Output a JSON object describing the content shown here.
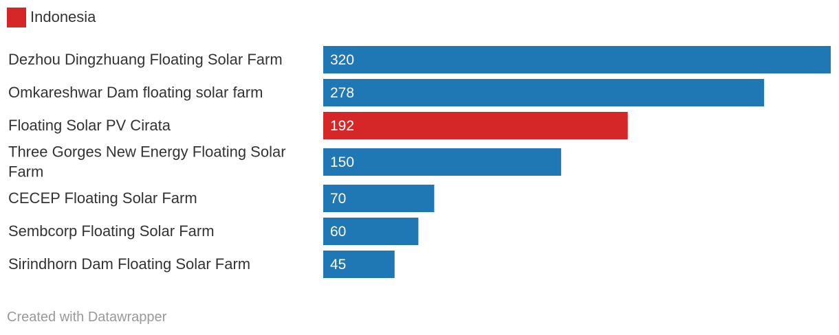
{
  "legend": {
    "label": "Indonesia",
    "color": "#d62728"
  },
  "footer": {
    "credit": "Created with Datawrapper"
  },
  "chart_data": {
    "type": "bar",
    "orientation": "horizontal",
    "categories": [
      "Dezhou Dingzhuang Floating Solar Farm",
      "Omkareshwar Dam floating solar farm",
      "Floating Solar PV Cirata",
      "Three Gorges New Energy Floating Solar Farm",
      "CECEP Floating Solar Farm",
      "Sembcorp Floating Solar Farm",
      "Sirindhorn Dam Floating Solar Farm"
    ],
    "values": [
      320,
      278,
      192,
      150,
      70,
      60,
      45
    ],
    "highlight": [
      false,
      false,
      true,
      false,
      false,
      false,
      false
    ],
    "colors": {
      "default": "#1f77b4",
      "highlight": "#d62728"
    },
    "xlim": [
      0,
      320
    ],
    "grid": false,
    "legend_position": "top-left"
  }
}
